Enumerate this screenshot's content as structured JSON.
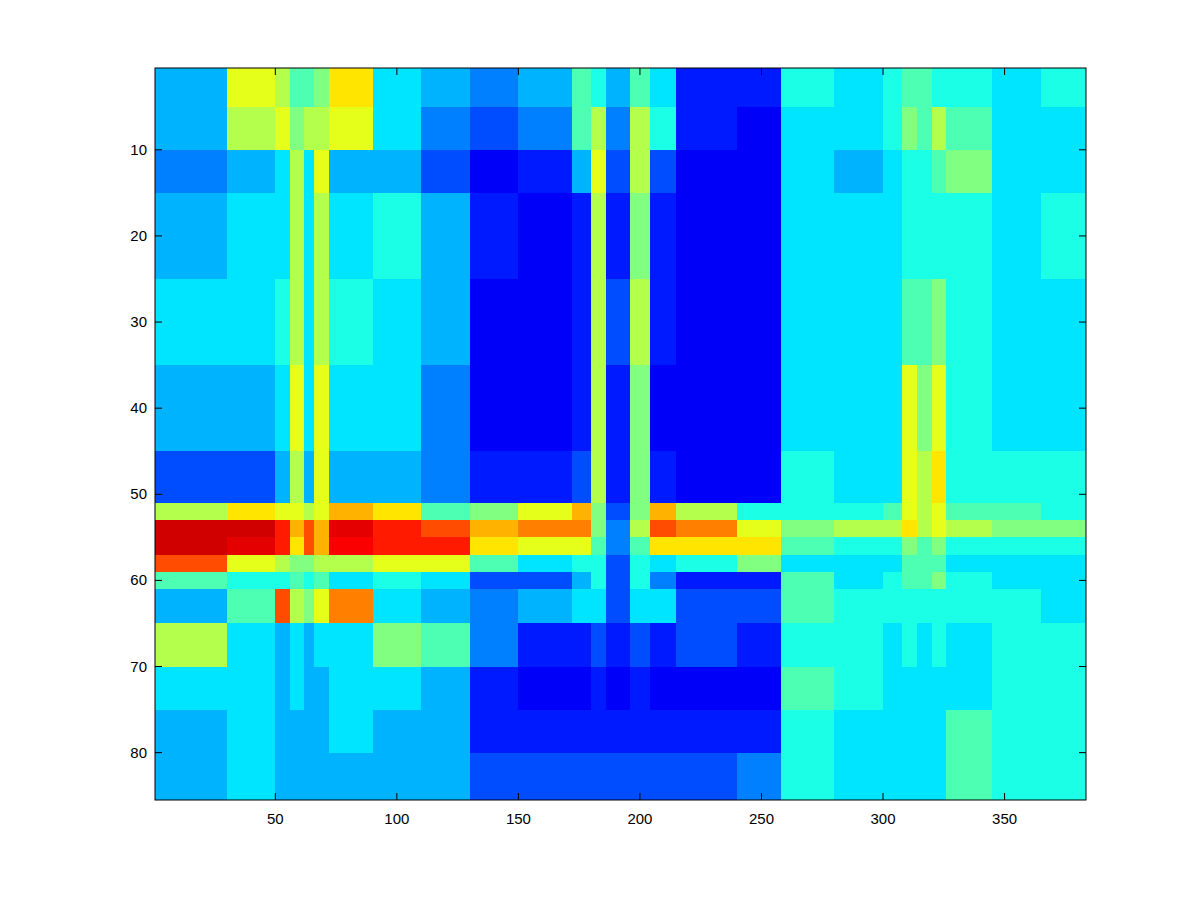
{
  "chart_data": {
    "type": "heatmap",
    "xlim": [
      0.5,
      383.5
    ],
    "ylim": [
      0.5,
      85.5
    ],
    "xticks": [
      50,
      100,
      150,
      200,
      250,
      300,
      350
    ],
    "yticks": [
      10,
      20,
      30,
      40,
      50,
      60,
      70,
      80
    ],
    "clim": [
      0,
      1
    ],
    "x_edges": [
      0.5,
      30,
      50,
      56,
      62,
      66,
      72,
      90,
      110,
      130,
      150,
      172,
      180,
      186,
      196,
      204,
      215,
      240,
      258,
      280,
      300,
      308,
      314,
      320,
      326,
      345,
      365,
      383.5
    ],
    "y_edges": [
      0.5,
      5,
      10,
      15,
      25,
      35,
      45,
      51,
      53,
      55,
      57,
      59,
      61,
      65,
      70,
      75,
      80,
      85.5
    ],
    "cells": [
      [
        0.3,
        0.6,
        0.55,
        0.45,
        0.45,
        0.5,
        0.65,
        0.35,
        0.3,
        0.25,
        0.3,
        0.45,
        0.4,
        0.3,
        0.45,
        0.35,
        0.15,
        0.15,
        0.4,
        0.35,
        0.4,
        0.45,
        0.45,
        0.4,
        0.4,
        0.35,
        0.4
      ],
      [
        0.3,
        0.55,
        0.6,
        0.5,
        0.55,
        0.55,
        0.6,
        0.35,
        0.25,
        0.2,
        0.25,
        0.45,
        0.55,
        0.25,
        0.55,
        0.4,
        0.15,
        0.12,
        0.35,
        0.35,
        0.4,
        0.5,
        0.45,
        0.55,
        0.45,
        0.35,
        0.35
      ],
      [
        0.25,
        0.3,
        0.35,
        0.55,
        0.35,
        0.6,
        0.3,
        0.3,
        0.2,
        0.12,
        0.15,
        0.3,
        0.6,
        0.2,
        0.55,
        0.2,
        0.12,
        0.12,
        0.35,
        0.3,
        0.35,
        0.4,
        0.4,
        0.45,
        0.5,
        0.35,
        0.35
      ],
      [
        0.3,
        0.35,
        0.35,
        0.55,
        0.35,
        0.55,
        0.35,
        0.4,
        0.3,
        0.15,
        0.12,
        0.15,
        0.55,
        0.15,
        0.5,
        0.15,
        0.12,
        0.12,
        0.35,
        0.35,
        0.35,
        0.4,
        0.4,
        0.4,
        0.4,
        0.35,
        0.4
      ],
      [
        0.35,
        0.35,
        0.4,
        0.55,
        0.35,
        0.55,
        0.4,
        0.35,
        0.3,
        0.12,
        0.12,
        0.15,
        0.55,
        0.2,
        0.55,
        0.15,
        0.12,
        0.12,
        0.35,
        0.35,
        0.35,
        0.45,
        0.45,
        0.5,
        0.4,
        0.35,
        0.35
      ],
      [
        0.3,
        0.3,
        0.35,
        0.6,
        0.35,
        0.6,
        0.35,
        0.35,
        0.25,
        0.12,
        0.12,
        0.15,
        0.55,
        0.15,
        0.5,
        0.12,
        0.12,
        0.12,
        0.35,
        0.35,
        0.35,
        0.6,
        0.5,
        0.6,
        0.4,
        0.35,
        0.35
      ],
      [
        0.2,
        0.2,
        0.3,
        0.55,
        0.3,
        0.6,
        0.3,
        0.3,
        0.25,
        0.15,
        0.15,
        0.2,
        0.55,
        0.15,
        0.5,
        0.15,
        0.12,
        0.12,
        0.4,
        0.35,
        0.35,
        0.6,
        0.55,
        0.65,
        0.4,
        0.4,
        0.4
      ],
      [
        0.55,
        0.65,
        0.6,
        0.6,
        0.55,
        0.6,
        0.7,
        0.65,
        0.45,
        0.5,
        0.6,
        0.7,
        0.5,
        0.2,
        0.5,
        0.7,
        0.55,
        0.4,
        0.4,
        0.4,
        0.45,
        0.6,
        0.55,
        0.6,
        0.45,
        0.45,
        0.4
      ],
      [
        0.92,
        0.92,
        0.85,
        0.7,
        0.8,
        0.7,
        0.9,
        0.85,
        0.8,
        0.7,
        0.75,
        0.75,
        0.5,
        0.25,
        0.55,
        0.8,
        0.75,
        0.6,
        0.5,
        0.55,
        0.55,
        0.65,
        0.55,
        0.6,
        0.55,
        0.5,
        0.5
      ],
      [
        0.92,
        0.9,
        0.85,
        0.65,
        0.8,
        0.7,
        0.88,
        0.85,
        0.85,
        0.65,
        0.6,
        0.6,
        0.45,
        0.25,
        0.45,
        0.65,
        0.65,
        0.65,
        0.45,
        0.4,
        0.4,
        0.5,
        0.45,
        0.5,
        0.4,
        0.4,
        0.4
      ],
      [
        0.8,
        0.6,
        0.55,
        0.5,
        0.5,
        0.55,
        0.55,
        0.6,
        0.6,
        0.45,
        0.35,
        0.4,
        0.4,
        0.2,
        0.4,
        0.35,
        0.4,
        0.5,
        0.35,
        0.35,
        0.35,
        0.45,
        0.45,
        0.45,
        0.35,
        0.35,
        0.35
      ],
      [
        0.45,
        0.4,
        0.4,
        0.45,
        0.4,
        0.45,
        0.35,
        0.4,
        0.35,
        0.2,
        0.2,
        0.3,
        0.4,
        0.2,
        0.4,
        0.25,
        0.15,
        0.15,
        0.45,
        0.35,
        0.4,
        0.45,
        0.45,
        0.5,
        0.4,
        0.35,
        0.35
      ],
      [
        0.3,
        0.45,
        0.8,
        0.55,
        0.5,
        0.6,
        0.75,
        0.35,
        0.3,
        0.25,
        0.3,
        0.35,
        0.35,
        0.2,
        0.35,
        0.35,
        0.2,
        0.2,
        0.45,
        0.4,
        0.4,
        0.4,
        0.4,
        0.4,
        0.4,
        0.4,
        0.35
      ],
      [
        0.55,
        0.35,
        0.3,
        0.35,
        0.3,
        0.35,
        0.35,
        0.5,
        0.45,
        0.25,
        0.15,
        0.15,
        0.2,
        0.15,
        0.2,
        0.15,
        0.2,
        0.15,
        0.4,
        0.4,
        0.35,
        0.4,
        0.35,
        0.4,
        0.35,
        0.4,
        0.4
      ],
      [
        0.35,
        0.35,
        0.3,
        0.35,
        0.3,
        0.3,
        0.35,
        0.35,
        0.3,
        0.15,
        0.12,
        0.12,
        0.15,
        0.12,
        0.15,
        0.12,
        0.12,
        0.12,
        0.45,
        0.4,
        0.35,
        0.35,
        0.35,
        0.35,
        0.35,
        0.4,
        0.4
      ],
      [
        0.3,
        0.35,
        0.3,
        0.3,
        0.3,
        0.3,
        0.35,
        0.3,
        0.3,
        0.15,
        0.15,
        0.15,
        0.15,
        0.15,
        0.15,
        0.15,
        0.15,
        0.15,
        0.4,
        0.35,
        0.35,
        0.35,
        0.35,
        0.35,
        0.45,
        0.4,
        0.4
      ],
      [
        0.3,
        0.35,
        0.3,
        0.3,
        0.3,
        0.3,
        0.3,
        0.3,
        0.3,
        0.2,
        0.2,
        0.2,
        0.2,
        0.2,
        0.2,
        0.2,
        0.2,
        0.25,
        0.4,
        0.35,
        0.35,
        0.35,
        0.35,
        0.35,
        0.45,
        0.4,
        0.4
      ]
    ]
  }
}
